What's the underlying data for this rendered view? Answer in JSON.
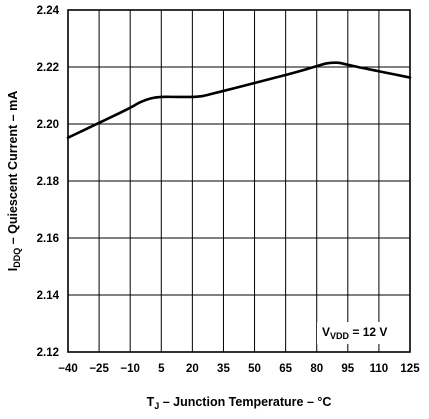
{
  "chart_data": {
    "type": "line",
    "x_label": {
      "prefix": "T",
      "subscript": "J",
      "suffix": " – Junction Temperature – °C"
    },
    "y_label": {
      "prefix": "I",
      "subscript": "DDQ",
      "suffix": " – Quiescent Current – mA"
    },
    "x_ticks": [
      "−40",
      "−25",
      "−10",
      "5",
      "20",
      "35",
      "50",
      "65",
      "80",
      "95",
      "110",
      "125"
    ],
    "y_ticks": [
      "2.12",
      "2.14",
      "2.16",
      "2.18",
      "2.20",
      "2.22",
      "2.24"
    ],
    "xlim": [
      -40,
      125
    ],
    "ylim": [
      2.12,
      2.24
    ],
    "grid": true,
    "annotation": {
      "prefix": "V",
      "subscript": "VDD",
      "suffix": " = 12 V"
    },
    "series": [
      {
        "points": [
          [
            -40,
            2.1952
          ],
          [
            -32.5,
            2.1978
          ],
          [
            -25,
            2.2004
          ],
          [
            -17.5,
            2.203
          ],
          [
            -10,
            2.2057
          ],
          [
            -5,
            2.2077
          ],
          [
            0,
            2.209
          ],
          [
            5,
            2.2095
          ],
          [
            12.5,
            2.2095
          ],
          [
            20,
            2.2095
          ],
          [
            25,
            2.2098
          ],
          [
            30,
            2.2107
          ],
          [
            35,
            2.2116
          ],
          [
            42.5,
            2.213
          ],
          [
            50,
            2.2144
          ],
          [
            57.5,
            2.2158
          ],
          [
            65,
            2.2172
          ],
          [
            72.5,
            2.2187
          ],
          [
            80,
            2.2203
          ],
          [
            85,
            2.2213
          ],
          [
            90,
            2.2215
          ],
          [
            95,
            2.2208
          ],
          [
            102.5,
            2.2196
          ],
          [
            110,
            2.2185
          ],
          [
            117.5,
            2.2174
          ],
          [
            125,
            2.2163
          ]
        ]
      }
    ]
  }
}
